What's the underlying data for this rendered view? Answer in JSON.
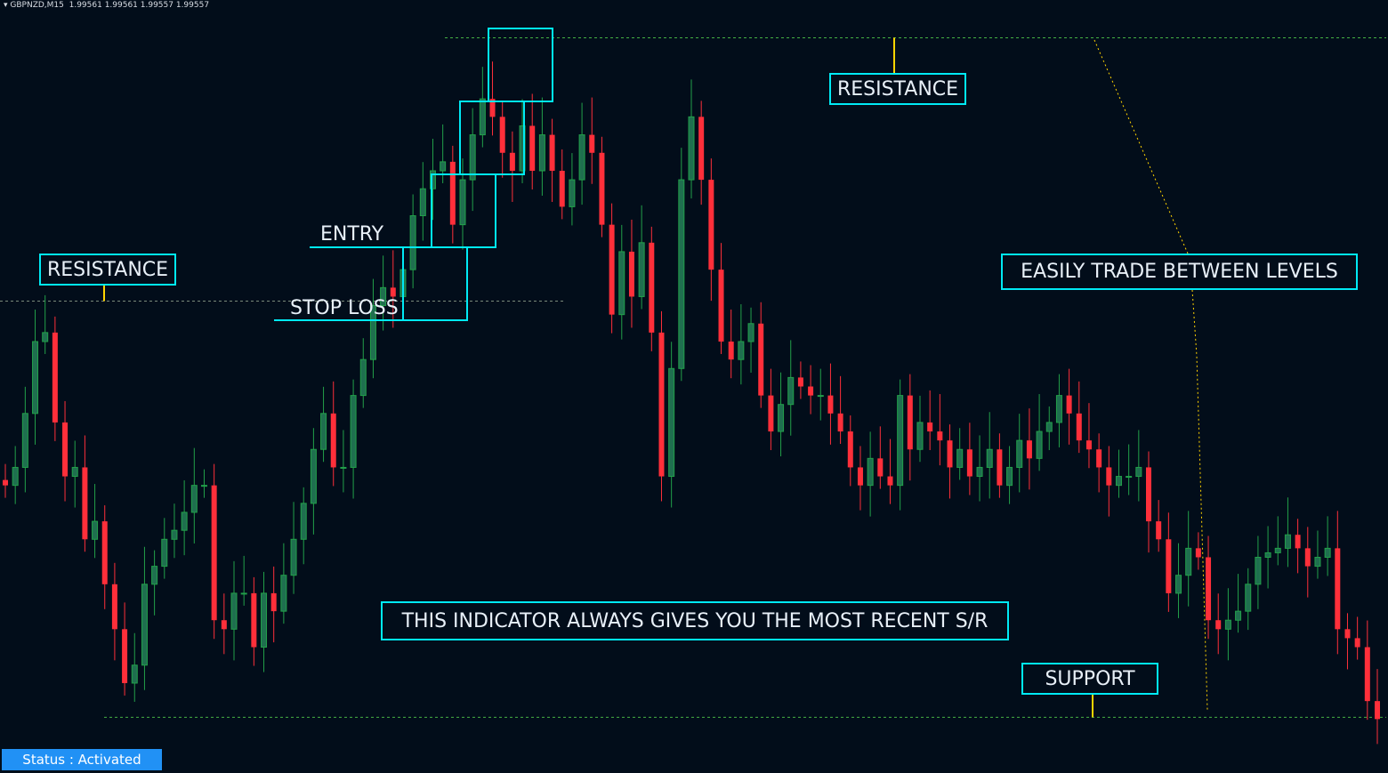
{
  "header": {
    "symbol": "GBPNZD,M15",
    "ohlc": "1.99561 1.99561 1.99557 1.99557"
  },
  "status": "Status : Activated",
  "annotations": {
    "resistance_left": "RESISTANCE",
    "resistance_top": "RESISTANCE",
    "easily": "EASILY TRADE BETWEEN LEVELS",
    "indicator": "THIS INDICATOR ALWAYS GIVES YOU THE MOST RECENT S/R",
    "support": "SUPPORT",
    "entry": "ENTRY",
    "stop_loss": "STOP LOSS"
  },
  "colors": {
    "background": "#020d1a",
    "bull": "#1f6f4f",
    "bull_outline": "#22a04a",
    "bear": "#ff2f3a",
    "annotation": "#00eaf5",
    "level_line": "#44b044",
    "marker": "#ffd400"
  },
  "chart_data": {
    "type": "candlestick",
    "symbol": "GBPNZD",
    "timeframe": "M15",
    "closes": [
      2.00857,
      2.00957,
      2.01257,
      2.01657,
      2.01707,
      2.01207,
      2.00907,
      2.00957,
      2.00557,
      2.00657,
      2.00307,
      2.00057,
      1.99757,
      1.99857,
      2.00307,
      2.00407,
      2.00557,
      2.00607,
      2.00707,
      2.00857,
      2.00857,
      2.00107,
      2.00057,
      2.00257,
      2.00257,
      1.99957,
      2.00257,
      2.00157,
      2.00357,
      2.00557,
      2.00757,
      2.01057,
      2.01257,
      2.00957,
      2.00957,
      2.01357,
      2.01557,
      2.01857,
      2.01957,
      2.01907,
      2.02057,
      2.02357,
      2.02507,
      2.02607,
      2.02657,
      2.02307,
      2.02557,
      2.02807,
      2.03007,
      2.02907,
      2.02707,
      2.02607,
      2.02857,
      2.02607,
      2.02807,
      2.02607,
      2.02407,
      2.02557,
      2.02807,
      2.02707,
      2.02307,
      2.01807,
      2.02157,
      2.01907,
      2.02207,
      2.01707,
      2.00907,
      2.01507,
      2.02557,
      2.02907,
      2.02557,
      2.02057,
      2.01657,
      2.01557,
      2.01657,
      2.01757,
      2.01357,
      2.01157,
      2.01307,
      2.01457,
      2.01407,
      2.01357,
      2.01357,
      2.01257,
      2.01157,
      2.00957,
      2.00857,
      2.01007,
      2.00907,
      2.00857,
      2.01357,
      2.01057,
      2.01207,
      2.01157,
      2.01107,
      2.00957,
      2.01057,
      2.00907,
      2.00957,
      2.01057,
      2.00857,
      2.00957,
      2.01107,
      2.01007,
      2.01157,
      2.01207,
      2.01357,
      2.01257,
      2.01107,
      2.01057,
      2.00957,
      2.00857,
      2.00907,
      2.00907,
      2.00957,
      2.00657,
      2.00557,
      2.00257,
      2.00357,
      2.00507,
      2.00457,
      2.00107,
      2.00057,
      2.00107,
      2.00157,
      2.00307,
      2.00457,
      2.00482,
      2.00507,
      2.00582,
      2.00507,
      2.00407,
      2.00457,
      2.00507,
      2.00057,
      2.00007,
      1.99957,
      1.99657,
      1.99557
    ],
    "levels": {
      "resistance_recent": 2.03347,
      "resistance_previous": 2.01882,
      "support": 1.99567
    },
    "price_range": [
      1.99257,
      2.03557
    ],
    "grid": false
  }
}
